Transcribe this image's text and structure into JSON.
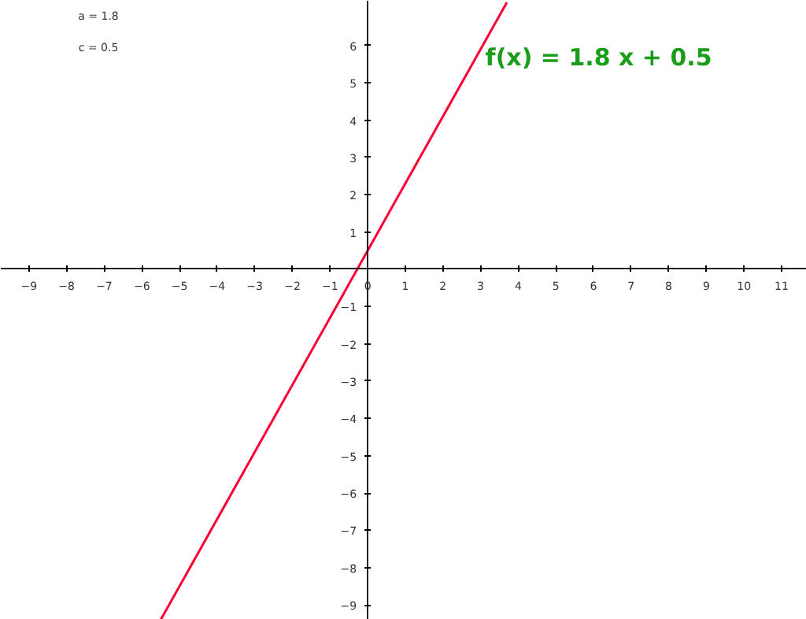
{
  "chart_data": {
    "type": "line",
    "x": [
      -5.5,
      3.7
    ],
    "series": [
      {
        "color": "#ff0033",
        "values": [
          -9.4,
          7.16
        ]
      }
    ],
    "xlim": [
      -9.75,
      11.67
    ],
    "ylim": [
      -9.4,
      7.2
    ],
    "xticks": [
      -9,
      -8,
      -7,
      -6,
      -5,
      -4,
      -3,
      -2,
      -1,
      0,
      1,
      2,
      3,
      4,
      5,
      6,
      7,
      8,
      9,
      10,
      11
    ],
    "yticks": [
      -9,
      -8,
      -7,
      -6,
      -5,
      -4,
      -3,
      -2,
      -1,
      1,
      2,
      3,
      4,
      5,
      6
    ],
    "grid": false,
    "marker": "none",
    "line_style": "solid",
    "annotations": [
      "a = 1.8",
      "c = 0.5",
      "f(x)  =  1.8 x + 0.5"
    ]
  }
}
